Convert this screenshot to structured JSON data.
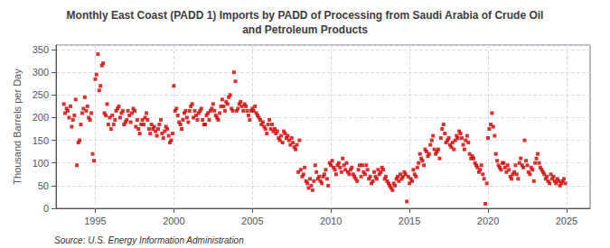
{
  "chart_data": {
    "type": "scatter",
    "title": "Monthly East Coast (PADD 1) Imports by PADD of Processing from Saudi Arabia of Crude Oil\nand Petroleum Products",
    "ylabel": "Thousand Barrels per Day",
    "annotations": [
      "Source: U.S. Energy Information Administration"
    ],
    "color": "#cc0000",
    "marker": "square",
    "grid": true,
    "xlim": [
      1992.5,
      2026.5
    ],
    "xticks": [
      1995,
      2000,
      2005,
      2010,
      2015,
      2020,
      2025
    ],
    "ylim": [
      0,
      360
    ],
    "yticks": [
      0,
      50,
      100,
      150,
      200,
      250,
      300,
      350
    ],
    "x": [
      1993.0,
      1993.08,
      1993.17,
      1993.25,
      1993.33,
      1993.42,
      1993.5,
      1993.58,
      1993.67,
      1993.75,
      1993.83,
      1993.92,
      1994.0,
      1994.08,
      1994.17,
      1994.25,
      1994.33,
      1994.42,
      1994.5,
      1994.58,
      1994.67,
      1994.75,
      1994.83,
      1994.92,
      1995.0,
      1995.08,
      1995.17,
      1995.25,
      1995.33,
      1995.42,
      1995.5,
      1995.58,
      1995.67,
      1995.75,
      1995.83,
      1995.92,
      1996.0,
      1996.08,
      1996.17,
      1996.25,
      1996.33,
      1996.42,
      1996.5,
      1996.58,
      1996.67,
      1996.75,
      1996.83,
      1996.92,
      1997.0,
      1997.08,
      1997.17,
      1997.25,
      1997.33,
      1997.42,
      1997.5,
      1997.58,
      1997.67,
      1997.75,
      1997.83,
      1997.92,
      1998.0,
      1998.08,
      1998.17,
      1998.25,
      1998.33,
      1998.42,
      1998.5,
      1998.58,
      1998.67,
      1998.75,
      1998.83,
      1998.92,
      1999.0,
      1999.08,
      1999.17,
      1999.25,
      1999.33,
      1999.42,
      1999.5,
      1999.58,
      1999.67,
      1999.75,
      1999.83,
      1999.92,
      2000.0,
      2000.08,
      2000.17,
      2000.25,
      2000.33,
      2000.42,
      2000.5,
      2000.58,
      2000.67,
      2000.75,
      2000.83,
      2000.92,
      2001.0,
      2001.08,
      2001.17,
      2001.25,
      2001.33,
      2001.42,
      2001.5,
      2001.58,
      2001.67,
      2001.75,
      2001.83,
      2001.92,
      2002.0,
      2002.08,
      2002.17,
      2002.25,
      2002.33,
      2002.42,
      2002.5,
      2002.58,
      2002.67,
      2002.75,
      2002.83,
      2002.92,
      2003.0,
      2003.08,
      2003.17,
      2003.25,
      2003.33,
      2003.42,
      2003.5,
      2003.58,
      2003.67,
      2003.75,
      2003.83,
      2003.92,
      2004.0,
      2004.08,
      2004.17,
      2004.25,
      2004.33,
      2004.42,
      2004.5,
      2004.58,
      2004.67,
      2004.75,
      2004.83,
      2004.92,
      2005.0,
      2005.08,
      2005.17,
      2005.25,
      2005.33,
      2005.42,
      2005.5,
      2005.58,
      2005.67,
      2005.75,
      2005.83,
      2005.92,
      2006.0,
      2006.08,
      2006.17,
      2006.25,
      2006.33,
      2006.42,
      2006.5,
      2006.58,
      2006.67,
      2006.75,
      2006.83,
      2006.92,
      2007.0,
      2007.08,
      2007.17,
      2007.25,
      2007.33,
      2007.42,
      2007.5,
      2007.58,
      2007.67,
      2007.75,
      2007.83,
      2007.92,
      2008.0,
      2008.08,
      2008.17,
      2008.25,
      2008.33,
      2008.42,
      2008.5,
      2008.58,
      2008.67,
      2008.75,
      2008.83,
      2008.92,
      2009.0,
      2009.08,
      2009.17,
      2009.25,
      2009.33,
      2009.42,
      2009.5,
      2009.58,
      2009.67,
      2009.75,
      2009.83,
      2009.92,
      2010.0,
      2010.08,
      2010.17,
      2010.25,
      2010.33,
      2010.42,
      2010.5,
      2010.58,
      2010.67,
      2010.75,
      2010.83,
      2010.92,
      2011.0,
      2011.08,
      2011.17,
      2011.25,
      2011.33,
      2011.42,
      2011.5,
      2011.58,
      2011.67,
      2011.75,
      2011.83,
      2011.92,
      2012.0,
      2012.08,
      2012.17,
      2012.25,
      2012.33,
      2012.42,
      2012.5,
      2012.58,
      2012.67,
      2012.75,
      2012.83,
      2012.92,
      2013.0,
      2013.08,
      2013.17,
      2013.25,
      2013.33,
      2013.42,
      2013.5,
      2013.58,
      2013.67,
      2013.75,
      2013.83,
      2013.92,
      2014.0,
      2014.08,
      2014.17,
      2014.25,
      2014.33,
      2014.42,
      2014.5,
      2014.58,
      2014.67,
      2014.75,
      2014.83,
      2014.92,
      2015.0,
      2015.08,
      2015.17,
      2015.25,
      2015.33,
      2015.42,
      2015.5,
      2015.58,
      2015.67,
      2015.75,
      2015.83,
      2015.92,
      2016.0,
      2016.08,
      2016.17,
      2016.25,
      2016.33,
      2016.42,
      2016.5,
      2016.58,
      2016.67,
      2016.75,
      2016.83,
      2016.92,
      2017.0,
      2017.08,
      2017.17,
      2017.25,
      2017.33,
      2017.42,
      2017.5,
      2017.58,
      2017.67,
      2017.75,
      2017.83,
      2017.92,
      2018.0,
      2018.08,
      2018.17,
      2018.25,
      2018.33,
      2018.42,
      2018.5,
      2018.58,
      2018.67,
      2018.75,
      2018.83,
      2018.92,
      2019.0,
      2019.08,
      2019.17,
      2019.25,
      2019.33,
      2019.42,
      2019.5,
      2019.58,
      2019.67,
      2019.75,
      2019.83,
      2019.92,
      2020.0,
      2020.08,
      2020.17,
      2020.25,
      2020.33,
      2020.42,
      2020.5,
      2020.58,
      2020.67,
      2020.75,
      2020.83,
      2020.92,
      2021.0,
      2021.08,
      2021.17,
      2021.25,
      2021.33,
      2021.42,
      2021.5,
      2021.58,
      2021.67,
      2021.75,
      2021.83,
      2021.92,
      2022.0,
      2022.08,
      2022.17,
      2022.25,
      2022.33,
      2022.42,
      2022.5,
      2022.58,
      2022.67,
      2022.75,
      2022.83,
      2022.92,
      2023.0,
      2023.08,
      2023.17,
      2023.25,
      2023.33,
      2023.42,
      2023.5,
      2023.58,
      2023.67,
      2023.75,
      2023.83,
      2023.92,
      2024.0,
      2024.08,
      2024.17,
      2024.25,
      2024.33,
      2024.42,
      2024.5,
      2024.58,
      2024.67,
      2024.75,
      2024.83,
      2024.92
    ],
    "values": [
      230,
      210,
      220,
      215,
      200,
      225,
      180,
      195,
      205,
      240,
      95,
      145,
      150,
      185,
      210,
      220,
      245,
      215,
      225,
      200,
      195,
      210,
      120,
      105,
      285,
      295,
      340,
      260,
      270,
      315,
      320,
      210,
      205,
      230,
      185,
      200,
      175,
      205,
      185,
      195,
      215,
      220,
      225,
      200,
      210,
      215,
      185,
      190,
      195,
      215,
      205,
      190,
      210,
      220,
      215,
      180,
      195,
      175,
      165,
      185,
      195,
      185,
      200,
      210,
      195,
      175,
      165,
      185,
      175,
      180,
      170,
      160,
      175,
      185,
      195,
      165,
      155,
      170,
      180,
      175,
      160,
      145,
      150,
      165,
      270,
      215,
      220,
      205,
      190,
      185,
      175,
      195,
      210,
      215,
      200,
      190,
      215,
      225,
      230,
      200,
      215,
      205,
      195,
      210,
      215,
      220,
      195,
      185,
      185,
      205,
      210,
      195,
      215,
      220,
      230,
      215,
      205,
      200,
      195,
      210,
      225,
      240,
      225,
      215,
      235,
      230,
      245,
      250,
      220,
      215,
      300,
      280,
      215,
      220,
      230,
      235,
      225,
      215,
      230,
      225,
      215,
      205,
      195,
      215,
      220,
      215,
      225,
      210,
      205,
      200,
      195,
      185,
      190,
      180,
      175,
      165,
      185,
      195,
      175,
      185,
      170,
      175,
      165,
      170,
      155,
      150,
      160,
      145,
      170,
      165,
      155,
      160,
      150,
      140,
      155,
      145,
      135,
      130,
      140,
      80,
      150,
      85,
      70,
      75,
      90,
      60,
      55,
      45,
      65,
      50,
      40,
      60,
      95,
      80,
      65,
      70,
      60,
      55,
      70,
      75,
      85,
      65,
      50,
      100,
      95,
      105,
      90,
      85,
      75,
      95,
      100,
      90,
      80,
      110,
      95,
      85,
      100,
      80,
      75,
      85,
      90,
      75,
      70,
      65,
      60,
      85,
      95,
      70,
      95,
      80,
      75,
      95,
      85,
      65,
      70,
      55,
      60,
      80,
      70,
      65,
      85,
      75,
      80,
      90,
      85,
      65,
      70,
      60,
      55,
      50,
      45,
      40,
      55,
      50,
      65,
      70,
      60,
      75,
      65,
      70,
      80,
      75,
      15,
      70,
      55,
      65,
      60,
      85,
      75,
      70,
      90,
      100,
      120,
      110,
      105,
      95,
      130,
      125,
      115,
      120,
      140,
      150,
      160,
      130,
      120,
      125,
      130,
      110,
      155,
      175,
      185,
      165,
      145,
      150,
      155,
      140,
      135,
      145,
      130,
      150,
      160,
      155,
      170,
      165,
      155,
      140,
      130,
      150,
      160,
      145,
      120,
      110,
      115,
      110,
      100,
      95,
      90,
      80,
      85,
      95,
      75,
      65,
      10,
      55,
      155,
      175,
      185,
      210,
      180,
      160,
      120,
      105,
      95,
      90,
      85,
      100,
      100,
      90,
      80,
      95,
      85,
      70,
      65,
      75,
      80,
      95,
      75,
      65,
      100,
      110,
      95,
      90,
      150,
      105,
      95,
      80,
      75,
      90,
      85,
      60,
      100,
      110,
      120,
      100,
      90,
      85,
      80,
      75,
      65,
      70,
      60,
      55,
      75,
      65,
      70,
      60,
      55,
      65,
      60,
      50,
      55,
      60,
      65,
      55
    ]
  }
}
